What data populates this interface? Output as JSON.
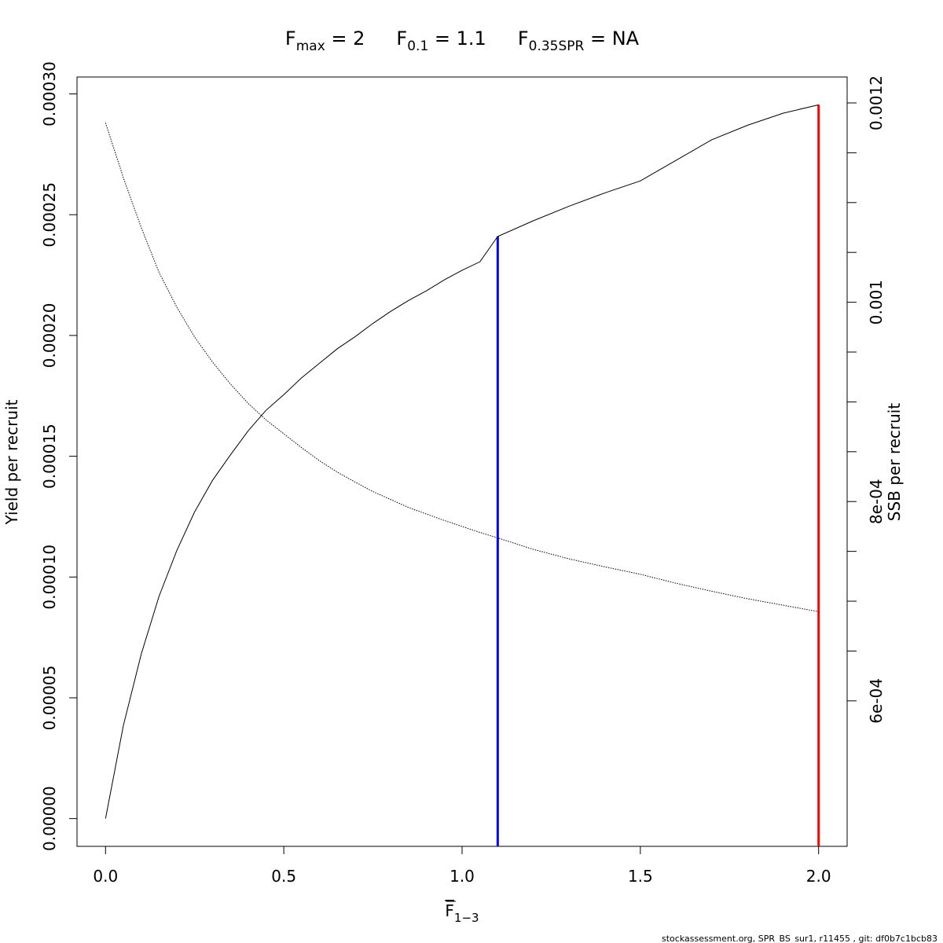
{
  "chart_data": {
    "type": "line",
    "title_parts": [
      {
        "main": "F",
        "sub": "max",
        "rest": " = 2"
      },
      {
        "main": "F",
        "sub": "0.1",
        "rest": " = 1.1"
      },
      {
        "main": "F",
        "sub": "0.35SPR",
        "rest": " = NA"
      }
    ],
    "xlabel": {
      "main": "F",
      "sub": "1−3"
    },
    "ylabel_left": "Yield per recruit",
    "ylabel_right": "SSB per recruit",
    "xlim": [
      -0.08,
      2.08
    ],
    "ylim_left": [
      -1.15e-05,
      0.000307
    ],
    "ylim_right": [
      0.000454,
      0.001226
    ],
    "x_ticks": [
      0,
      0.5,
      1,
      1.5,
      2
    ],
    "x_tick_labels": [
      "0.0",
      "0.5",
      "1.0",
      "1.5",
      "2.0"
    ],
    "y_left_ticks": [
      0,
      5e-05,
      0.0001,
      0.00015,
      0.0002,
      0.00025,
      0.0003
    ],
    "y_left_tick_labels": [
      "0.00000",
      "0.00005",
      "0.00010",
      "0.00015",
      "0.00020",
      "0.00025",
      "0.00030"
    ],
    "y_right_ticks": [
      0.0006,
      0.00065,
      0.0007,
      0.00075,
      0.0008,
      0.00085,
      0.0009,
      0.00095,
      0.001,
      0.00105,
      0.0011,
      0.00115,
      0.0012
    ],
    "y_right_labeled": [
      {
        "value": 0.0006,
        "label": "6e-04"
      },
      {
        "value": 0.0008,
        "label": "8e-04"
      },
      {
        "value": 0.001,
        "label": "0.001"
      },
      {
        "value": 0.0012,
        "label": "0.0012"
      }
    ],
    "series": [
      {
        "axis": "left",
        "style": "solid",
        "color": "#000000",
        "x": [
          0,
          0.05,
          0.1,
          0.15,
          0.2,
          0.25,
          0.3,
          0.35,
          0.4,
          0.45,
          0.5,
          0.55,
          0.6,
          0.65,
          0.7,
          0.75,
          0.8,
          0.85,
          0.9,
          0.95,
          1.0,
          1.05,
          1.1,
          1.2,
          1.3,
          1.4,
          1.5,
          1.6,
          1.7,
          1.8,
          1.9,
          2.0
        ],
        "y": [
          0,
          3.85e-05,
          6.8e-05,
          9.2e-05,
          0.000111,
          0.000127,
          0.00014,
          0.0001505,
          0.0001605,
          0.000169,
          0.0001755,
          0.0001825,
          0.0001885,
          0.0001945,
          0.0001995,
          0.000205,
          0.00021,
          0.0002145,
          0.0002185,
          0.000223,
          0.000227,
          0.0002305,
          0.000241,
          0.0002475,
          0.0002535,
          0.000259,
          0.000264,
          0.0002725,
          0.000281,
          0.000287,
          0.000292,
          0.0002955
        ]
      },
      {
        "axis": "right",
        "style": "dotted",
        "color": "#000000",
        "x": [
          0,
          0.05,
          0.1,
          0.15,
          0.2,
          0.25,
          0.3,
          0.35,
          0.4,
          0.45,
          0.5,
          0.55,
          0.6,
          0.65,
          0.7,
          0.75,
          0.8,
          0.85,
          0.9,
          0.95,
          1.0,
          1.05,
          1.1,
          1.2,
          1.3,
          1.4,
          1.5,
          1.6,
          1.7,
          1.8,
          1.9,
          2.0
        ],
        "y": [
          0.00118,
          0.001125,
          0.001075,
          0.00103,
          0.000995,
          0.000965,
          0.00094,
          0.000918,
          0.0008985,
          0.000882,
          0.000868,
          0.000854,
          0.000841,
          0.0008295,
          0.0008195,
          0.00081,
          0.000802,
          0.000794,
          0.0007875,
          0.000781,
          0.000775,
          0.000769,
          0.0007635,
          0.000752,
          0.0007425,
          0.0007345,
          0.000727,
          0.000718,
          0.00071,
          0.0007025,
          0.000696,
          0.0006895
        ]
      }
    ],
    "ref_lines": [
      {
        "name": "F0.1",
        "x": 1.1,
        "y_top_left": 0.000241,
        "color": "#0000ff"
      },
      {
        "name": "Fmax",
        "x": 2.0,
        "y_top_left": 0.0002955,
        "color": "#ff0000"
      }
    ],
    "grid": false,
    "legend": "none"
  },
  "footer": "stockassessment.org, SPR_BS_sur1, r11455 , git: df0b7c1bcb83"
}
